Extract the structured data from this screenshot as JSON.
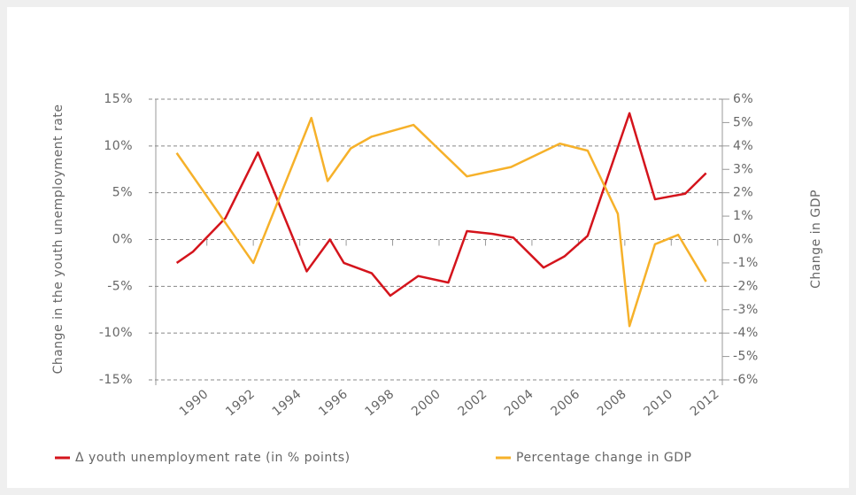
{
  "chart_data": {
    "type": "line",
    "y_label": "Change in the youth unemployment rate",
    "y2_label": "Change in GDP",
    "xlim": [
      1987.8,
      2012.2
    ],
    "xticks": [
      1990,
      1992,
      1994,
      1996,
      1998,
      2000,
      2002,
      2004,
      2006,
      2008,
      2010,
      2012
    ],
    "ylim": [
      -15,
      15
    ],
    "yticks": [
      {
        "value": 15,
        "label": "15%"
      },
      {
        "value": 10,
        "label": "10%"
      },
      {
        "value": 5,
        "label": "5%"
      },
      {
        "value": 0,
        "label": "0%"
      },
      {
        "value": -5,
        "label": "-5%"
      },
      {
        "value": -10,
        "label": "-10%"
      },
      {
        "value": -15,
        "label": "-15%"
      }
    ],
    "y2lim": [
      -6,
      6
    ],
    "y2ticks": [
      {
        "value": 6,
        "label": "6%"
      },
      {
        "value": 5,
        "label": "5%"
      },
      {
        "value": 4,
        "label": "4%"
      },
      {
        "value": 3,
        "label": "3%"
      },
      {
        "value": 2,
        "label": "2%"
      },
      {
        "value": 1,
        "label": "1%"
      },
      {
        "value": 0,
        "label": "0%"
      },
      {
        "value": -1,
        "label": "-1%"
      },
      {
        "value": -2,
        "label": "-2%"
      },
      {
        "value": -3,
        "label": "-3%"
      },
      {
        "value": -4,
        "label": "-4%"
      },
      {
        "value": -5,
        "label": "-5%"
      },
      {
        "value": -6,
        "label": "-6%"
      }
    ],
    "grid": true,
    "series": [
      {
        "name": "Δ youth unemployment rate (in % points)",
        "color": "#d4141c",
        "x": [
          1988.7,
          1989.4,
          1990.8,
          1992.2,
          1994.3,
          1995.3,
          1995.9,
          1997.1,
          1997.9,
          1999.1,
          2000.4,
          2001.2,
          2002.3,
          2003.2,
          2004.5,
          2005.4,
          2006.4,
          2008.2,
          2009.3,
          2010.6,
          2011.5
        ],
        "values": [
          -2.5,
          -1.3,
          2.3,
          9.3,
          -3.4,
          0,
          -2.5,
          -3.6,
          -6,
          -3.9,
          -4.6,
          0.9,
          0.6,
          0.2,
          -3.0,
          -1.8,
          0.4,
          13.5,
          4.3,
          4.9,
          7.1
        ]
      },
      {
        "name": "Percentage change in GDP",
        "color": "#f6b12a",
        "axis": "y2",
        "x": [
          1988.7,
          1992.0,
          1994.5,
          1995.2,
          1996.2,
          1997.1,
          1998.9,
          2001.2,
          2003.1,
          2005.2,
          2006.4,
          2007.7,
          2008.2,
          2009.3,
          2010.3,
          2011.5
        ],
        "values": [
          3.7,
          -1.0,
          5.2,
          2.5,
          3.9,
          4.4,
          4.9,
          2.7,
          3.1,
          4.1,
          3.8,
          1.1,
          -3.7,
          -0.2,
          0.2,
          -1.8
        ]
      }
    ]
  }
}
